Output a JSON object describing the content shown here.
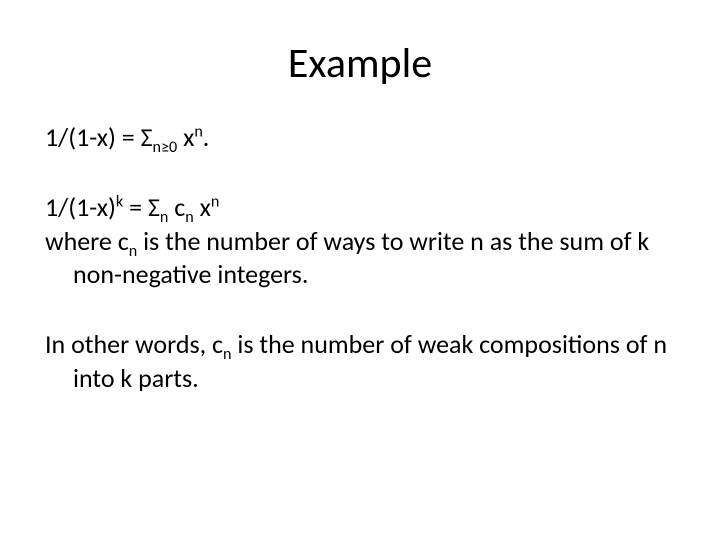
{
  "slide": {
    "title": "Example",
    "title_fontsize": 42,
    "title_color": "#000000",
    "background_color": "#ffffff",
    "body_fontsize": 26,
    "body_color": "#000000",
    "font_family": "Calibri",
    "paragraphs": {
      "p1": {
        "pre1": "1/(1-x) = Σ",
        "sub1": "n≥0",
        "mid1": " x",
        "sup1": "n",
        "post1": "."
      },
      "p2": {
        "l1_pre1": "1/(1-x)",
        "l1_sup1": "k",
        "l1_mid1": " = Σ",
        "l1_sub1": "n",
        "l1_mid2": " c",
        "l1_sub2": "n",
        "l1_mid3": " x",
        "l1_sup2": "n",
        "l2_pre": "where c",
        "l2_sub": "n",
        "l2_post": " is the number of ways to write n as the sum of k non-negative integers."
      },
      "p3": {
        "pre": "In other words, c",
        "sub": "n",
        "post": " is the number of weak compositions of n into k parts."
      }
    }
  }
}
